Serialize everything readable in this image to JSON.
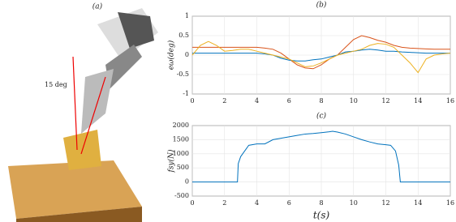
{
  "figure_a": {
    "label": "(a)",
    "annotation": "15 deg"
  },
  "chart_data": [
    {
      "type": "line",
      "title": "(b)",
      "y_label": "eω(deg)",
      "x": [
        0,
        0.5,
        1,
        1.5,
        2,
        2.5,
        3,
        3.5,
        4,
        4.5,
        5,
        5.5,
        6,
        6.5,
        7,
        7.5,
        8,
        8.5,
        9,
        9.5,
        10,
        10.5,
        11,
        11.5,
        12,
        12.5,
        13,
        13.5,
        14,
        14.5,
        15,
        15.5,
        16
      ],
      "series": [
        {
          "color": "#d95319",
          "values": [
            0.2,
            0.2,
            0.2,
            0.2,
            0.2,
            0.2,
            0.2,
            0.2,
            0.2,
            0.18,
            0.15,
            0.05,
            -0.1,
            -0.25,
            -0.33,
            -0.35,
            -0.25,
            -0.1,
            0,
            0.2,
            0.4,
            0.5,
            0.45,
            0.38,
            0.33,
            0.25,
            0.2,
            0.18,
            0.17,
            0.16,
            0.15,
            0.15,
            0.15
          ]
        },
        {
          "color": "#0072bd",
          "values": [
            0.05,
            0.05,
            0.05,
            0.05,
            0.05,
            0.05,
            0.05,
            0.05,
            0.05,
            0.03,
            0,
            -0.08,
            -0.13,
            -0.15,
            -0.15,
            -0.12,
            -0.1,
            -0.05,
            0,
            0.08,
            0.1,
            0.13,
            0.15,
            0.13,
            0.1,
            0.1,
            0.08,
            0.07,
            0.06,
            0.05,
            0.05,
            0.05,
            0.05
          ]
        },
        {
          "color": "#edb120",
          "values": [
            0,
            0.25,
            0.35,
            0.25,
            0.1,
            0.12,
            0.15,
            0.15,
            0.1,
            0.05,
            0,
            -0.05,
            -0.1,
            -0.2,
            -0.3,
            -0.28,
            -0.2,
            -0.1,
            0,
            0.05,
            0.1,
            0.15,
            0.25,
            0.3,
            0.28,
            0.2,
            0,
            -0.2,
            -0.45,
            -0.1,
            0,
            0.03,
            0.05
          ]
        }
      ],
      "xlim": [
        0,
        16
      ],
      "xticks": [
        0,
        2,
        4,
        6,
        8,
        10,
        12,
        14,
        16
      ],
      "ylim": [
        -1,
        1
      ],
      "yticks": [
        -1,
        -0.5,
        0,
        0.5,
        1
      ],
      "grid": true
    },
    {
      "type": "line",
      "title": "(c)",
      "y_label": "fsy(N)",
      "x_label": "t(s)",
      "x": [
        0,
        1,
        2,
        2.8,
        2.85,
        3,
        3.5,
        4,
        4.5,
        5,
        5.5,
        6,
        6.5,
        7,
        7.5,
        8,
        8.5,
        8.7,
        9,
        9.5,
        10,
        10.5,
        11,
        11.5,
        12,
        12.3,
        12.6,
        12.8,
        12.9,
        13,
        14,
        15,
        16
      ],
      "series": [
        {
          "color": "#0072bd",
          "values": [
            0,
            0,
            0,
            0,
            650,
            900,
            1300,
            1350,
            1350,
            1500,
            1550,
            1600,
            1650,
            1700,
            1720,
            1750,
            1780,
            1800,
            1770,
            1700,
            1600,
            1500,
            1420,
            1350,
            1320,
            1300,
            1100,
            600,
            0,
            0,
            0,
            0,
            0
          ]
        }
      ],
      "xlim": [
        0,
        16
      ],
      "xticks": [
        0,
        2,
        4,
        6,
        8,
        10,
        12,
        14,
        16
      ],
      "ylim": [
        -500,
        2000
      ],
      "yticks": [
        -500,
        0,
        500,
        1000,
        1500,
        2000
      ],
      "grid": true
    }
  ]
}
